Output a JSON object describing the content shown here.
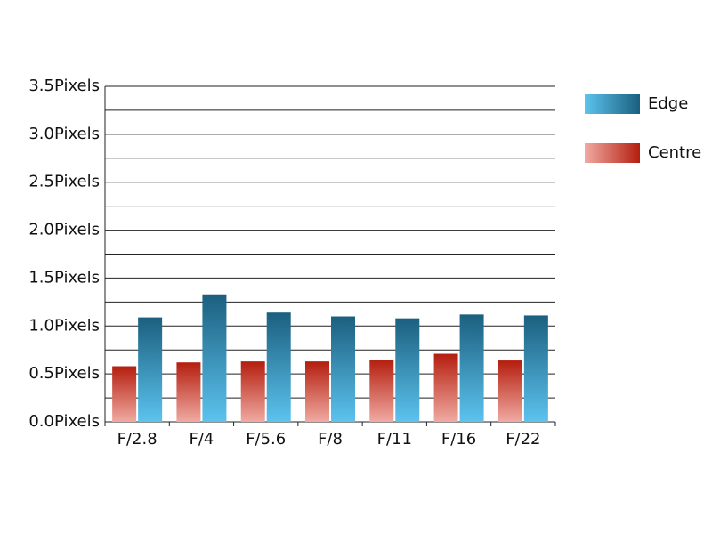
{
  "chart_data": {
    "type": "bar",
    "categories": [
      "F/2.8",
      "F/4",
      "F/5.6",
      "F/8",
      "F/11",
      "F/16",
      "F/22"
    ],
    "series": [
      {
        "name": "Edge",
        "color": "#1b5f7f",
        "gradient_color": "#5cc3ee",
        "values": [
          1.09,
          1.33,
          1.14,
          1.1,
          1.08,
          1.12,
          1.11
        ]
      },
      {
        "name": "Centre",
        "color": "#b41e0e",
        "gradient_color": "#f0aaa2",
        "values": [
          0.58,
          0.62,
          0.63,
          0.63,
          0.65,
          0.71,
          0.64
        ]
      }
    ],
    "ylim": [
      0,
      3.5
    ],
    "yticks": [
      {
        "value": 0,
        "label": "0.0Pixels"
      },
      {
        "value": 0.5,
        "label": "0.5Pixels"
      },
      {
        "value": 1,
        "label": "1.0Pixels"
      },
      {
        "value": 1.5,
        "label": "1.5Pixels"
      },
      {
        "value": 2,
        "label": "2.0Pixels"
      },
      {
        "value": 2.5,
        "label": "2.5Pixels"
      },
      {
        "value": 3,
        "label": "3.0Pixels"
      },
      {
        "value": 3.5,
        "label": "3.5Pixels"
      }
    ],
    "minor_yticks": [
      0.25,
      0.75,
      1.25,
      1.75,
      2.25,
      2.75,
      3.25
    ],
    "grid": true,
    "legend": "right"
  }
}
